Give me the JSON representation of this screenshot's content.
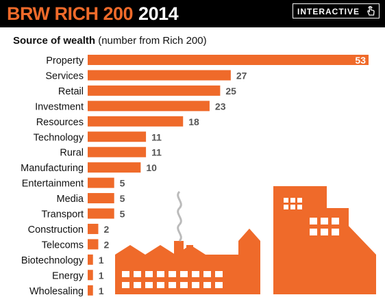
{
  "header": {
    "title": "BRW RICH 200",
    "year": "2014",
    "interactive_label": "INTERACTIVE",
    "interactive_icon": "hand-pointer-icon"
  },
  "subtitle": {
    "bold": "Source of wealth",
    "rest": "(number from Rich 200)"
  },
  "colors": {
    "bar": "#ef6a2a",
    "header_bg": "#000000",
    "brand": "#ef6a2a",
    "value_text": "#555555"
  },
  "chart_data": {
    "type": "bar",
    "orientation": "horizontal",
    "title": "Source of wealth",
    "xlabel": "",
    "ylabel": "",
    "xlim": [
      0,
      53
    ],
    "grid": false,
    "legend": "none",
    "categories": [
      "Property",
      "Services",
      "Retail",
      "Investment",
      "Resources",
      "Technology",
      "Rural",
      "Manufacturing",
      "Entertainment",
      "Media",
      "Transport",
      "Construction",
      "Telecoms",
      "Biotechnology",
      "Energy",
      "Wholesaling"
    ],
    "values": [
      53,
      27,
      25,
      23,
      18,
      11,
      11,
      10,
      5,
      5,
      5,
      2,
      2,
      1,
      1,
      1
    ]
  }
}
